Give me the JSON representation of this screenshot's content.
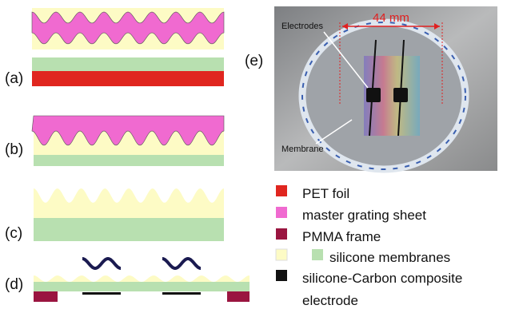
{
  "panels": {
    "a": "(a)",
    "b": "(b)",
    "c": "(c)",
    "d": "(d)",
    "e": "(e)"
  },
  "photo": {
    "electrodes": "Electrodes",
    "dimension": "44 mm",
    "membrane": "Membrane"
  },
  "legend": [
    "PET foil",
    "master grating sheet",
    "PMMA frame",
    "silicone membranes",
    "silicone-Carbon composite",
    "electrode"
  ]
}
